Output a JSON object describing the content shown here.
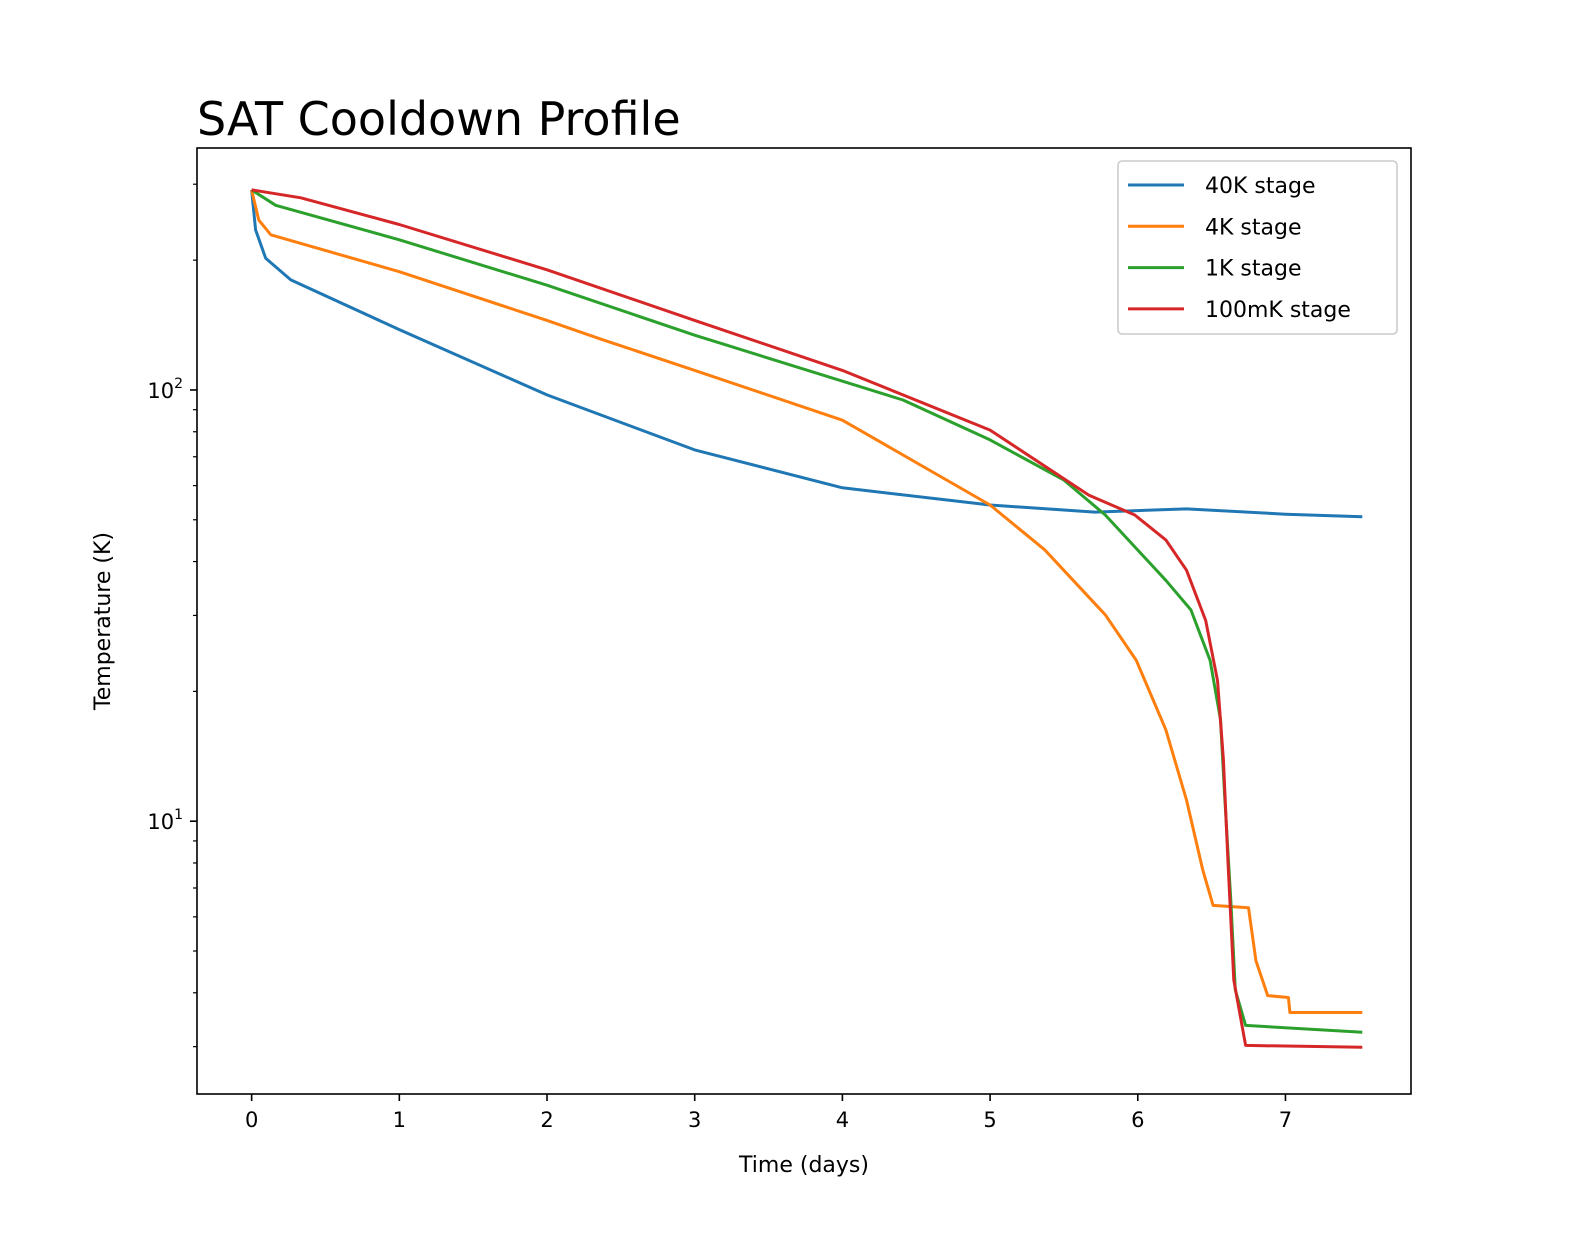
{
  "chart_data": {
    "type": "line",
    "title": "SAT Cooldown Profile",
    "xlabel": "Time (days)",
    "ylabel": "Temperature (K)",
    "xlim": [
      -0.37,
      7.85
    ],
    "ylim": [
      2.33,
      364
    ],
    "yscale": "log",
    "x_ticks": [
      0,
      1,
      2,
      3,
      4,
      5,
      6,
      7
    ],
    "x_tick_labels": [
      "0",
      "1",
      "2",
      "3",
      "4",
      "5",
      "6",
      "7"
    ],
    "y_ticks": [
      10,
      100
    ],
    "y_tick_labels": [
      {
        "base": "10",
        "exp": "1"
      },
      {
        "base": "10",
        "exp": "2"
      }
    ],
    "grid": false,
    "legend": {
      "placement": "top-right"
    },
    "series": [
      {
        "name": "40K stage",
        "color": "#1f77b4",
        "x": [
          0,
          0.027,
          0.095,
          0.265,
          1.0,
          2.0,
          3.0,
          4.0,
          5.0,
          5.71,
          6.33,
          7.0,
          7.52
        ],
        "y": [
          291,
          235,
          202,
          180,
          138,
          97.4,
          72.6,
          59.3,
          54.1,
          52.1,
          53,
          51.5,
          50.8
        ]
      },
      {
        "name": "4K stage",
        "color": "#ff7f0e",
        "x": [
          0,
          0.048,
          0.13,
          1.0,
          2.0,
          2.37,
          3.0,
          4.0,
          5.0,
          5.37,
          5.78,
          5.99,
          6.19,
          6.33,
          6.44,
          6.51,
          6.75,
          6.8,
          6.88,
          7.02,
          7.03,
          7.52
        ],
        "y": [
          291,
          248,
          229,
          188,
          145,
          131,
          111,
          85.1,
          54.1,
          42.6,
          30.1,
          23.6,
          16.3,
          11.2,
          7.7,
          6.38,
          6.3,
          4.75,
          3.94,
          3.9,
          3.6,
          3.6
        ]
      },
      {
        "name": "1K stage",
        "color": "#2ca02c",
        "x": [
          0,
          0.163,
          1.0,
          2.0,
          3.0,
          4.41,
          5.0,
          5.5,
          5.78,
          6.19,
          6.36,
          6.49,
          6.56,
          6.59,
          6.63,
          6.66,
          6.73,
          7.52
        ],
        "y": [
          291,
          268,
          223,
          175,
          134,
          94.8,
          76.6,
          61.8,
          51.3,
          36.2,
          30.9,
          23.6,
          17.2,
          11.2,
          6.56,
          4.06,
          3.36,
          3.24
        ]
      },
      {
        "name": "100mK stage",
        "color": "#d62728",
        "x": [
          0,
          0.333,
          1.0,
          2.0,
          3.0,
          4.0,
          5.0,
          5.67,
          5.98,
          6.19,
          6.33,
          6.46,
          6.54,
          6.58,
          6.61,
          6.65,
          6.73,
          7.52
        ],
        "y": [
          291,
          279,
          242,
          190,
          145,
          111,
          80.7,
          57,
          51.3,
          44.9,
          38.2,
          29.2,
          21.2,
          13.9,
          8.12,
          4.28,
          3.02,
          2.99
        ]
      }
    ]
  }
}
